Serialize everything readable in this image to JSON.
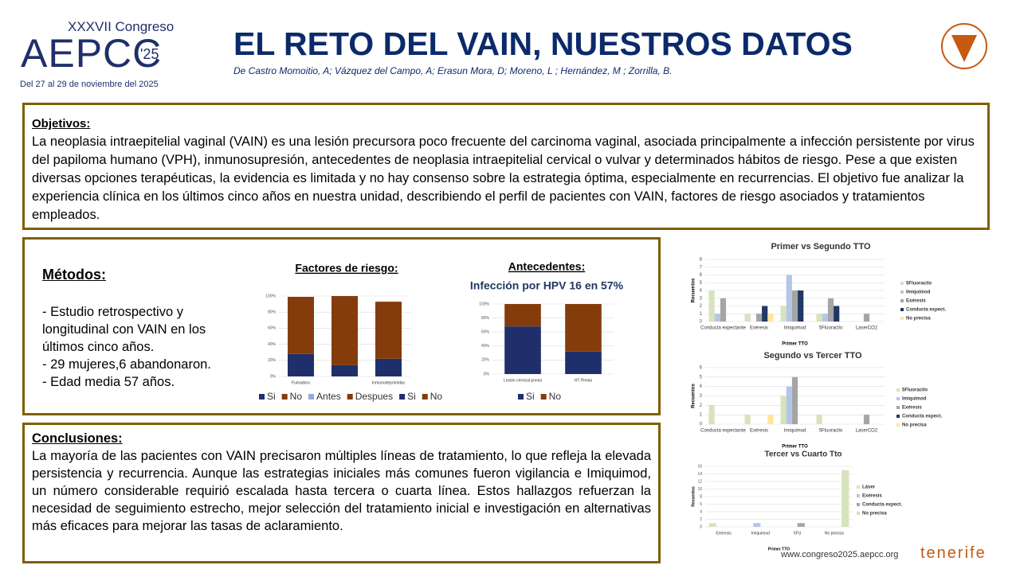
{
  "header": {
    "congress": "XXXVII Congreso",
    "brand": "AEPCC",
    "year": "'25",
    "dates": "Del 27 al 29 de noviembre del 2025",
    "title": "EL RETO DEL VAIN, NUESTROS DATOS",
    "authors": "De Castro Momoitio, A; Vázquez del Campo, A; Erasun Mora, D;  Moreno, L ;  Hernández, M ; Zorrilla, B."
  },
  "objetivos": {
    "heading": "Objetivos:",
    "text": "La neoplasia intraepitelial vaginal (VAIN) es una lesión precursora poco frecuente del carcinoma vaginal, asociada principalmente a infección persistente por virus del papiloma humano (VPH), inmunosupresión, antecedentes de neoplasia intraepitelial cervical o vulvar y determinados hábitos de riesgo. Pese a que existen diversas opciones terapéuticas, la evidencia es limitada y no hay consenso sobre la estrategia óptima, especialmente en recurrencias. El objetivo fue analizar la experiencia clínica en los últimos cinco años en nuestra unidad, describiendo el perfil de pacientes con VAIN, factores de riesgo asociados y tratamientos empleados."
  },
  "metodos": {
    "heading": "Métodos:",
    "lines": [
      "- Estudio retrospectivo y longitudinal con  VAIN en los últimos cinco años.",
      "- 29 mujeres,6 abandonaron.",
      "- Edad media 57 años."
    ]
  },
  "conclusiones": {
    "heading": "Conclusiones:",
    "text": "La mayoría de las pacientes con VAIN precisaron múltiples líneas de tratamiento, lo que refleja la elevada persistencia y recurrencia. Aunque las estrategias iniciales más comunes fueron vigilancia e Imiquimod, un número considerable requirió escalada hasta tercera o cuarta línea. Estos hallazgos refuerzan la necesidad de seguimiento estrecho, mejor selección del tratamiento inicial e investigación en alternativas más eficaces para mejorar las tasas de aclaramiento."
  },
  "footer": {
    "url": "www.congreso2025.aepcc.org",
    "city": "tenerife"
  },
  "chart_data": [
    {
      "type": "bar",
      "stacked": true,
      "title": "Factores de riesgo:",
      "categories": [
        "Fumadora",
        null,
        "Inmunodeprimidas"
      ],
      "series": [
        {
          "name": "Si",
          "color": "#1f2f6b",
          "values": [
            28,
            14,
            22
          ]
        },
        {
          "name": "No",
          "color": "#843c0c",
          "values": [
            71,
            86,
            71
          ]
        }
      ],
      "legend_extra": [
        {
          "name": "Antes",
          "color": "#8faadc"
        },
        {
          "name": "Despues",
          "color": "#843c0c"
        },
        {
          "name": "Si",
          "color": "#1f2f6b"
        },
        {
          "name": "No",
          "color": "#843c0c"
        }
      ],
      "ylim": [
        0,
        100
      ],
      "yticks": [
        {
          "value": 0,
          "label": "0%"
        },
        {
          "value": 20,
          "label": "20%"
        },
        {
          "value": 40,
          "label": "40%"
        },
        {
          "value": 60,
          "label": "60%"
        },
        {
          "value": 80,
          "label": "80%"
        },
        {
          "value": 100,
          "label": "100%"
        }
      ],
      "grid": true,
      "legend": "bottom"
    },
    {
      "type": "bar",
      "stacked": true,
      "title": "Antecedentes:",
      "subtitle": "Infección por HPV 16 en 57%",
      "categories": [
        "Lesión cervical previa",
        "HT Previa"
      ],
      "series": [
        {
          "name": "Si",
          "color": "#1f2f6b",
          "values": [
            68,
            32
          ]
        },
        {
          "name": "No",
          "color": "#843c0c",
          "values": [
            32,
            68
          ]
        }
      ],
      "ylim": [
        0,
        100
      ],
      "yticks": [
        {
          "value": 0,
          "label": "0%"
        },
        {
          "value": 20,
          "label": "20%"
        },
        {
          "value": 40,
          "label": "40%"
        },
        {
          "value": 60,
          "label": "60%"
        },
        {
          "value": 80,
          "label": "80%"
        },
        {
          "value": 100,
          "label": "100%"
        }
      ],
      "grid": true,
      "legend": "bottom"
    },
    {
      "type": "bar",
      "stacked": false,
      "title": "Primer vs Segundo TTO",
      "x_label": "Primer TTO",
      "y_label": "Recuentos",
      "categories": [
        "Conducta expectante",
        "Exéresis",
        "Imiquimod",
        "5Fluoracilo",
        "LaserCO2"
      ],
      "series": [
        {
          "name": "5Fluoracilo",
          "color": "#d6e3bc",
          "values": [
            4,
            1,
            2,
            1,
            0
          ]
        },
        {
          "name": "Imiquimod",
          "color": "#b4c6e7",
          "values": [
            1,
            0,
            6,
            1,
            0
          ]
        },
        {
          "name": "Exéresis",
          "color": "#a5a5a5",
          "values": [
            3,
            1,
            4,
            3,
            1
          ]
        },
        {
          "name": "Conducta expect.",
          "color": "#203864",
          "values": [
            0,
            2,
            4,
            2,
            0
          ]
        },
        {
          "name": "No precisa",
          "color": "#ffe699",
          "values": [
            0,
            1,
            0,
            0,
            0
          ]
        }
      ],
      "ylim": [
        0,
        8
      ],
      "yticks": [
        0,
        1,
        2,
        3,
        4,
        5,
        6,
        7,
        8
      ],
      "grid": true,
      "legend": "right"
    },
    {
      "type": "bar",
      "stacked": false,
      "title": "Segundo vs Tercer TTO",
      "x_label": "Primer TTO",
      "y_label": "Recuentos",
      "categories": [
        "Conducta expectante",
        "Exéresis",
        "Imiquimod",
        "5Fluoracilo",
        "LaserCO2"
      ],
      "series": [
        {
          "name": "5Fluoracilo",
          "color": "#d6e3bc",
          "values": [
            2,
            1,
            3,
            1,
            0
          ]
        },
        {
          "name": "Imiquimod",
          "color": "#b4c6e7",
          "values": [
            0,
            0,
            4,
            0,
            0
          ]
        },
        {
          "name": "Exéresis",
          "color": "#a5a5a5",
          "values": [
            0,
            0,
            5,
            0,
            1
          ]
        },
        {
          "name": "Conducta expect.",
          "color": "#203864",
          "values": [
            0,
            0,
            0,
            0,
            0
          ]
        },
        {
          "name": "No precisa",
          "color": "#ffe699",
          "values": [
            0,
            1,
            0,
            0,
            0
          ]
        }
      ],
      "ylim": [
        0,
        6
      ],
      "yticks": [
        0,
        1,
        2,
        3,
        4,
        5,
        6
      ],
      "grid": true,
      "legend": "right"
    },
    {
      "type": "bar",
      "stacked": false,
      "title": "Tercer vs Cuarto Tto",
      "x_label": "Primer TTO",
      "y_label": "Recuentos",
      "categories": [
        "Exéresis",
        "Imiquimod",
        "5FU",
        "No precisa"
      ],
      "series": [
        {
          "name": "Láser",
          "color": "#d6e3bc",
          "values": [
            1,
            0,
            0,
            0
          ]
        },
        {
          "name": "Exéresis",
          "color": "#b4c6e7",
          "values": [
            0,
            1,
            0,
            0
          ]
        },
        {
          "name": "Conducta expect.",
          "color": "#a5a5a5",
          "values": [
            0,
            0,
            1,
            0
          ]
        },
        {
          "name": "No precisa",
          "color": "#d6e3bc",
          "values": [
            0,
            0,
            0,
            15
          ]
        }
      ],
      "ylim": [
        0,
        16
      ],
      "yticks": [
        0,
        2,
        4,
        6,
        8,
        10,
        12,
        14,
        16
      ],
      "grid": true,
      "legend": "right"
    }
  ]
}
